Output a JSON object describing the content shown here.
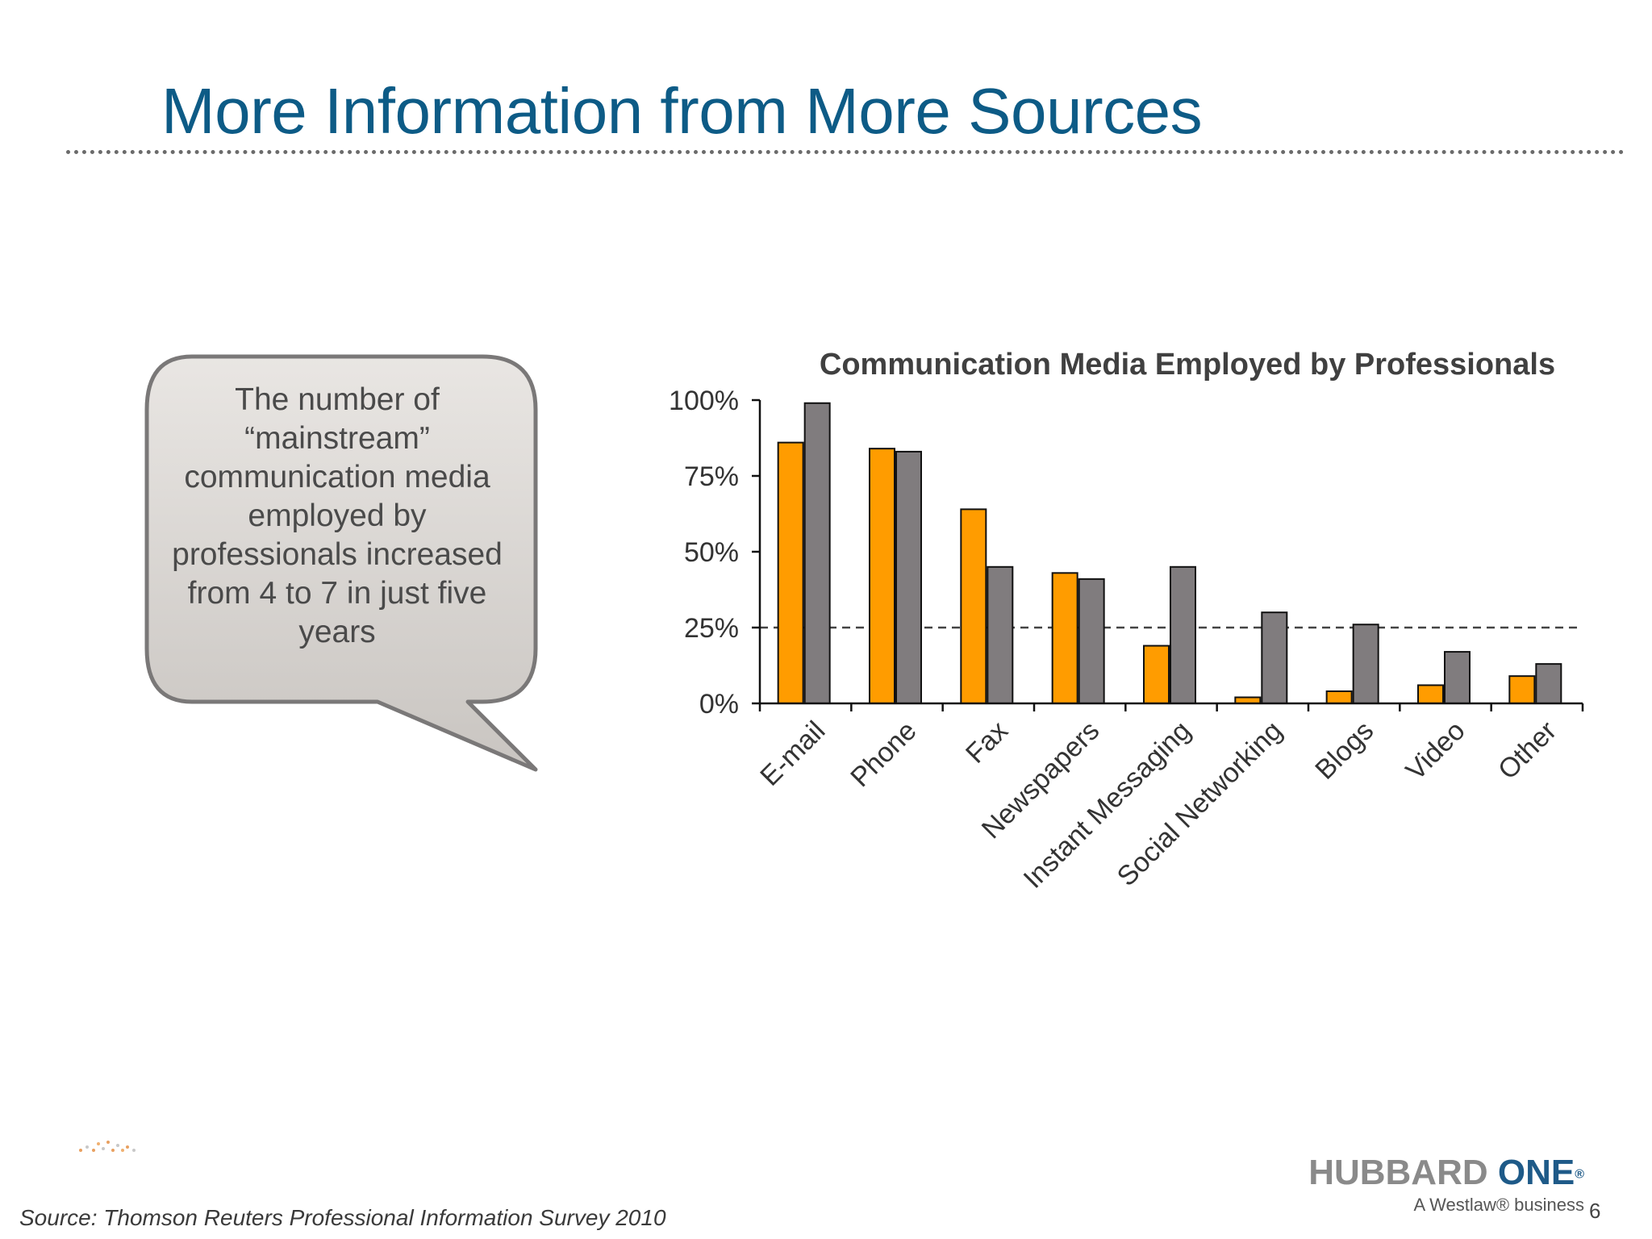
{
  "slide": {
    "title": "More Information from More Sources",
    "callout_text": "The number of “mainstream” communication media employed by professionals increased from 4 to 7 in just five years",
    "source": "Source: Thomson Reuters Professional Information Survey 2010",
    "brand_name_part1": "HUBBARD ",
    "brand_name_part2": "ONE",
    "brand_reg_mark": "®",
    "brand_tagline": "A Westlaw® business",
    "page_number": "6"
  },
  "chart_data": {
    "type": "bar",
    "title": "Communication Media Employed by Professionals",
    "categories": [
      "E-mail",
      "Phone",
      "Fax",
      "Newspapers",
      "Instant Messaging",
      "Social Networking",
      "Blogs",
      "Video",
      "Other"
    ],
    "series": [
      {
        "values": [
          86,
          84,
          64,
          43,
          19,
          2,
          4,
          6,
          9
        ]
      },
      {
        "values": [
          99,
          83,
          45,
          41,
          45,
          30,
          26,
          17,
          13
        ]
      }
    ],
    "ylim": [
      0,
      100
    ],
    "yticks": [
      0,
      25,
      50,
      75,
      100
    ],
    "ytick_labels": [
      "0%",
      "25%",
      "50%",
      "75%",
      "100%"
    ],
    "reference_line": 25,
    "colors": [
      "#ff9c00",
      "#807c7e"
    ],
    "grid": false
  }
}
